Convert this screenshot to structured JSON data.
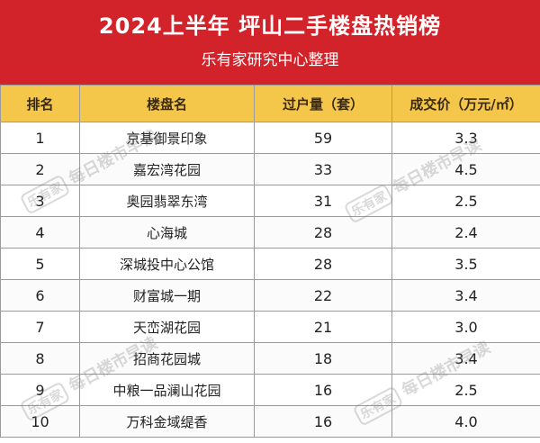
{
  "header": {
    "title": "2024上半年  坪山二手楼盘热销榜",
    "subtitle": "乐有家研究中心整理",
    "background_color": "#d3232a"
  },
  "table": {
    "columns": [
      "排名",
      "楼盘名",
      "过户量（套）",
      "成交价（万元/㎡）"
    ],
    "rows": [
      {
        "rank": "1",
        "name": "京基御景印象",
        "volume": "59",
        "price": "3.3"
      },
      {
        "rank": "2",
        "name": "嘉宏湾花园",
        "volume": "33",
        "price": "4.5"
      },
      {
        "rank": "3",
        "name": "奥园翡翠东湾",
        "volume": "31",
        "price": "2.5"
      },
      {
        "rank": "4",
        "name": "心海城",
        "volume": "28",
        "price": "2.4"
      },
      {
        "rank": "5",
        "name": "深城投中心公馆",
        "volume": "28",
        "price": "3.5"
      },
      {
        "rank": "6",
        "name": "财富城一期",
        "volume": "22",
        "price": "3.4"
      },
      {
        "rank": "7",
        "name": "天峦湖花园",
        "volume": "21",
        "price": "3.0"
      },
      {
        "rank": "8",
        "name": "招商花园城",
        "volume": "18",
        "price": "3.4"
      },
      {
        "rank": "9",
        "name": "中粮一品澜山花园",
        "volume": "16",
        "price": "2.5"
      },
      {
        "rank": "10",
        "name": "万科金域缇香",
        "volume": "16",
        "price": "4.0"
      }
    ],
    "header_color": "#f4c64a"
  },
  "watermark": {
    "logo": "乐有家",
    "text": "每日楼市早读"
  }
}
